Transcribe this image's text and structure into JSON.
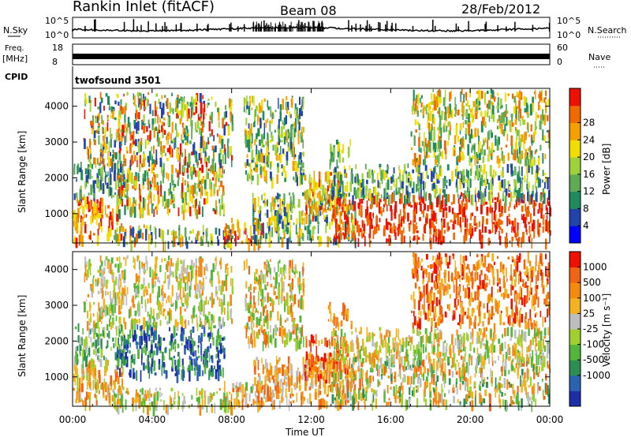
{
  "header": {
    "station": "Rankin Inlet (fitACF)",
    "beam": "Beam 08",
    "date": "28/Feb/2012"
  },
  "side_labels": {
    "nsky": "N.Sky",
    "nsearch": "N.Search",
    "freq": "Freq.",
    "freq_unit": "[MHz]",
    "nave": "Nave",
    "cpid": "CPID",
    "sky_left_ticks": [
      "10^5",
      "10^0"
    ],
    "sky_right_ticks": [
      "10^5",
      "10^0"
    ],
    "freq_left_ticks": [
      "18",
      "8"
    ],
    "freq_right_ticks": [
      "60",
      "0"
    ],
    "cpid_name": "twofsound 3501"
  },
  "chart_data": [
    {
      "type": "heatmap",
      "name": "power",
      "ylabel": "Slant Range [km]",
      "xlabel": "",
      "x_range_hours": [
        0,
        24
      ],
      "ylim": [
        180,
        4500
      ],
      "y_ticks": [
        "1000",
        "2000",
        "3000",
        "4000"
      ],
      "colorbar": {
        "label": "Power [dB]",
        "ticks": [
          "4",
          "8",
          "12",
          "16",
          "20",
          "24",
          "28"
        ],
        "colors": [
          "#0000ff",
          "#2244aa",
          "#1f8a5e",
          "#5faa55",
          "#9ed23c",
          "#f2dd00",
          "#f4a100",
          "#f06a00",
          "#ee1000"
        ]
      },
      "regions": [
        {
          "t": [
            0.0,
            2.5
          ],
          "r": [
            300,
            1500
          ],
          "c": [
            5,
            8
          ]
        },
        {
          "t": [
            0.0,
            2.6
          ],
          "r": [
            1500,
            2500
          ],
          "c": [
            1,
            4
          ]
        },
        {
          "t": [
            2.2,
            7.6
          ],
          "r": [
            1100,
            2500
          ],
          "c": [
            2,
            8
          ]
        },
        {
          "t": [
            2.0,
            8.0
          ],
          "r": [
            200,
            700
          ],
          "c": [
            1,
            7
          ]
        },
        {
          "t": [
            7.6,
            9.6
          ],
          "r": [
            200,
            900
          ],
          "c": [
            5,
            8
          ]
        },
        {
          "t": [
            9.0,
            14.2
          ],
          "r": [
            300,
            1600
          ],
          "c": [
            1,
            6
          ]
        },
        {
          "t": [
            11.6,
            13.8
          ],
          "r": [
            1000,
            2200
          ],
          "c": [
            4,
            8
          ]
        },
        {
          "t": [
            13.0,
            24.0
          ],
          "r": [
            300,
            1600
          ],
          "c": [
            7,
            8
          ]
        },
        {
          "t": [
            13.0,
            24.0
          ],
          "r": [
            1500,
            2400
          ],
          "c": [
            1,
            5
          ]
        },
        {
          "t": [
            12.8,
            14.0
          ],
          "r": [
            2500,
            3100
          ],
          "c": [
            2,
            5
          ]
        },
        {
          "t": [
            8.6,
            11.6
          ],
          "r": [
            2000,
            4300
          ],
          "c": [
            1,
            6
          ]
        },
        {
          "t": [
            0.5,
            8.0
          ],
          "r": [
            2500,
            4400
          ],
          "c": [
            1,
            8
          ]
        },
        {
          "t": [
            17.0,
            24.0
          ],
          "r": [
            2500,
            4500
          ],
          "c": [
            2,
            7
          ]
        }
      ]
    },
    {
      "type": "heatmap",
      "name": "velocity",
      "ylabel": "Slant Range [km]",
      "xlabel": "Time UT",
      "x_range_hours": [
        0,
        24
      ],
      "x_ticks": [
        "00:00",
        "04:00",
        "08:00",
        "12:00",
        "16:00",
        "20:00",
        "00:00"
      ],
      "ylim": [
        180,
        4500
      ],
      "y_ticks": [
        "1000",
        "2000",
        "3000",
        "4000"
      ],
      "colorbar": {
        "label": "Velocity [m s⁻¹]",
        "ticks": [
          "1000",
          "500",
          "100",
          "25",
          "-25",
          "-100",
          "-500",
          "-1000"
        ],
        "colors": [
          "#1c2fa8",
          "#2a64b0",
          "#2b8f52",
          "#53b63a",
          "#9fd02e",
          "#bdbdbd",
          "#f3b21f",
          "#f58a10",
          "#f06414",
          "#ee1000"
        ]
      },
      "regions": [
        {
          "t": [
            0.0,
            2.5
          ],
          "r": [
            300,
            1500
          ],
          "c": [
            4,
            8
          ]
        },
        {
          "t": [
            0.0,
            2.6
          ],
          "r": [
            1500,
            2500
          ],
          "c": [
            2,
            5
          ]
        },
        {
          "t": [
            2.2,
            7.6
          ],
          "r": [
            1100,
            2500
          ],
          "c": [
            0,
            3
          ]
        },
        {
          "t": [
            2.0,
            8.0
          ],
          "r": [
            200,
            700
          ],
          "c": [
            3,
            7
          ]
        },
        {
          "t": [
            7.6,
            9.6
          ],
          "r": [
            200,
            900
          ],
          "c": [
            3,
            8
          ]
        },
        {
          "t": [
            9.0,
            14.2
          ],
          "r": [
            300,
            1600
          ],
          "c": [
            5,
            8
          ]
        },
        {
          "t": [
            11.6,
            13.8
          ],
          "r": [
            1000,
            2200
          ],
          "c": [
            6,
            9
          ]
        },
        {
          "t": [
            13.0,
            24.0
          ],
          "r": [
            300,
            1600
          ],
          "c": [
            2,
            8
          ]
        },
        {
          "t": [
            13.0,
            24.0
          ],
          "r": [
            1500,
            2400
          ],
          "c": [
            3,
            7
          ]
        },
        {
          "t": [
            12.8,
            14.0
          ],
          "r": [
            2500,
            3100
          ],
          "c": [
            6,
            8
          ]
        },
        {
          "t": [
            8.6,
            11.6
          ],
          "r": [
            2000,
            4300
          ],
          "c": [
            3,
            8
          ]
        },
        {
          "t": [
            0.5,
            8.0
          ],
          "r": [
            2500,
            4400
          ],
          "c": [
            3,
            7
          ]
        },
        {
          "t": [
            17.0,
            24.0
          ],
          "r": [
            2500,
            4500
          ],
          "c": [
            6,
            9
          ]
        }
      ]
    }
  ]
}
